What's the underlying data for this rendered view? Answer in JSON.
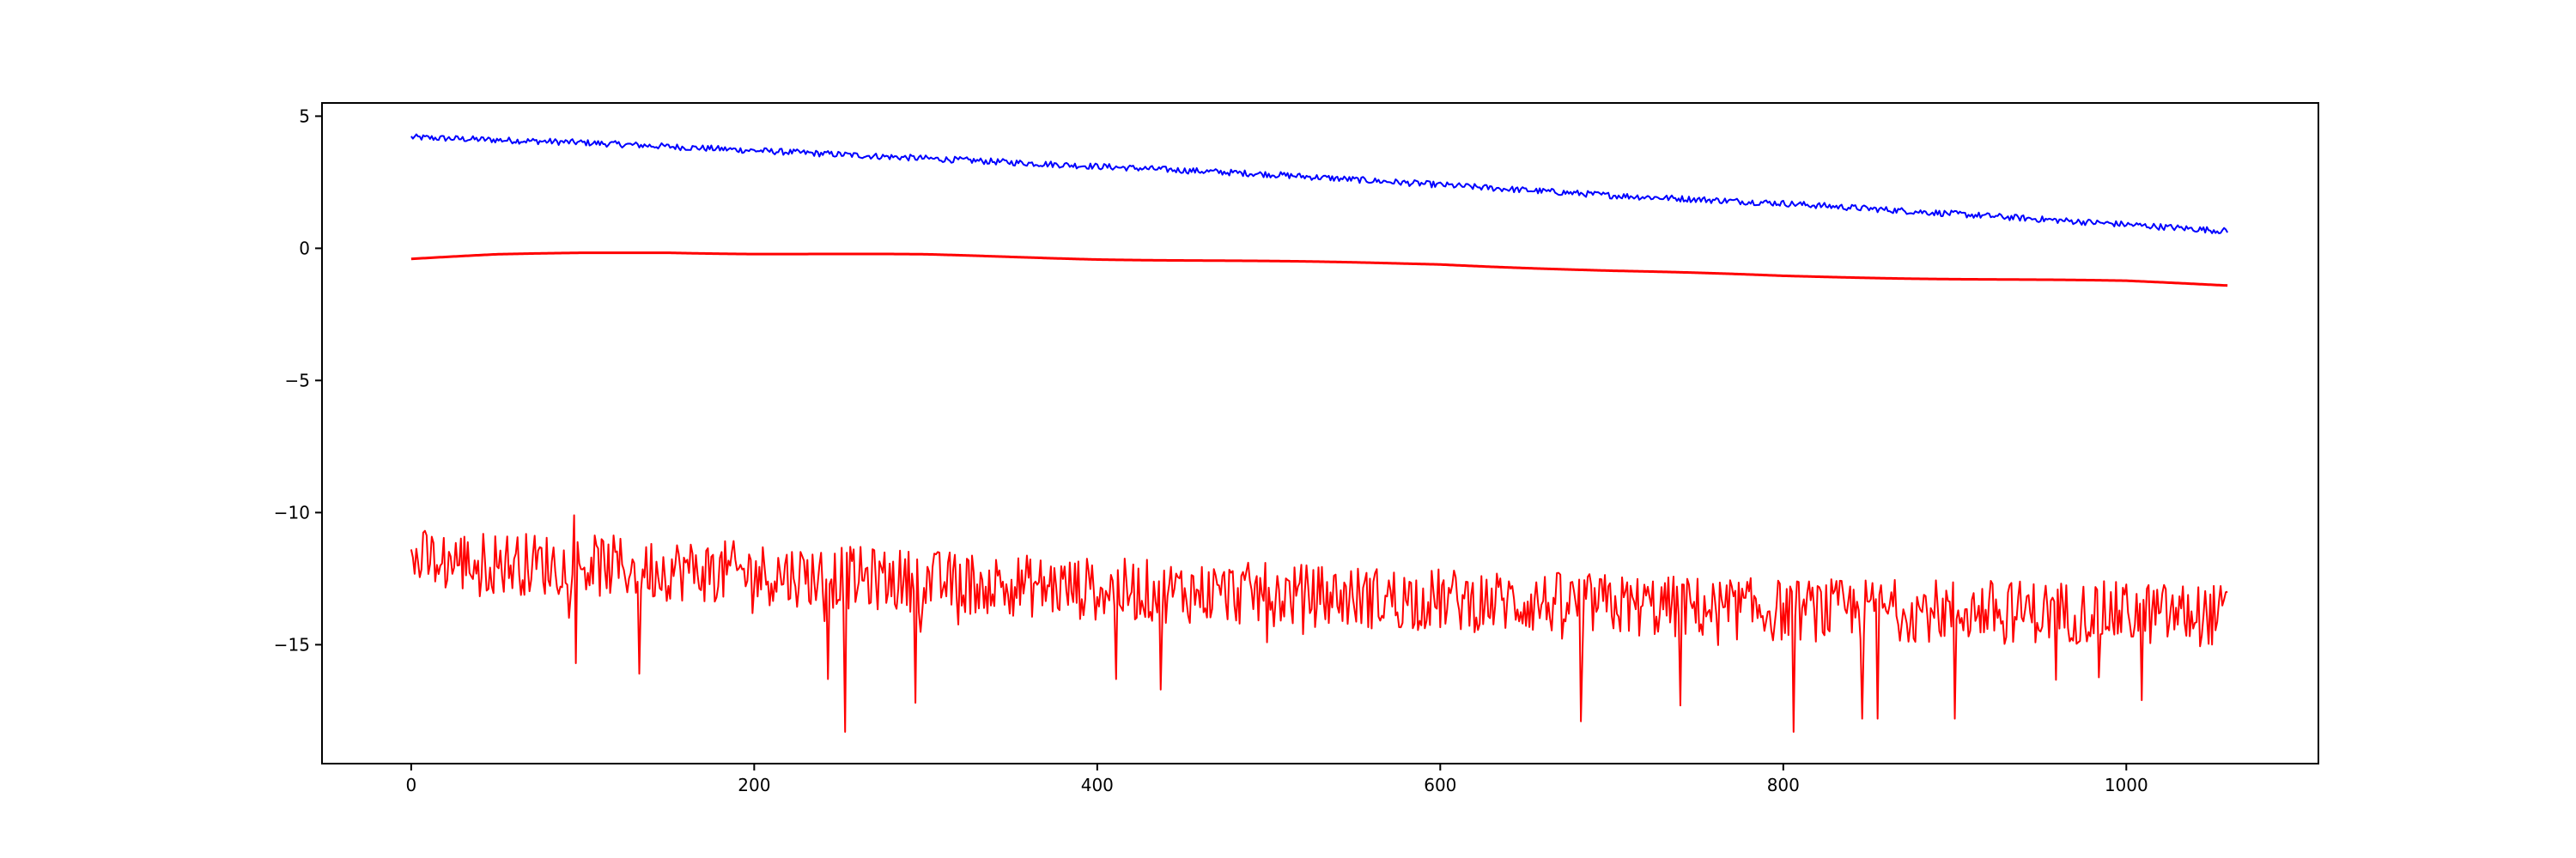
{
  "chart_data": {
    "type": "line",
    "title": "",
    "xlabel": "",
    "ylabel": "",
    "xlim": [
      -52,
      1112
    ],
    "ylim": [
      -19.5,
      5.5
    ],
    "grid": false,
    "x_ticks": [
      0,
      200,
      400,
      600,
      800,
      1000
    ],
    "y_ticks": [
      5,
      0,
      -5,
      -10,
      -15
    ],
    "y_tick_labels": [
      "5",
      "0",
      "−5",
      "−10",
      "−15"
    ],
    "x_tick_labels": [
      "0",
      "200",
      "400",
      "600",
      "800",
      "1000"
    ],
    "x_count": 1060,
    "series": [
      {
        "color": "#0000ff",
        "kind": "noisy_trend",
        "anchor_x": [
          0,
          100,
          200,
          300,
          400,
          500,
          600,
          700,
          800,
          900,
          1000,
          1059
        ],
        "anchor_y": [
          4.2,
          4.0,
          3.7,
          3.4,
          3.1,
          2.8,
          2.4,
          2.0,
          1.7,
          1.3,
          0.9,
          0.65
        ],
        "noise_amplitude": 0.12
      },
      {
        "color": "#ff0000",
        "kind": "smooth",
        "anchor_x": [
          0,
          50,
          100,
          150,
          200,
          300,
          400,
          450,
          500,
          550,
          600,
          700,
          800,
          900,
          1000,
          1059
        ],
        "anchor_y": [
          -0.4,
          -0.25,
          -0.18,
          -0.15,
          -0.2,
          -0.25,
          -0.4,
          -0.45,
          -0.5,
          -0.55,
          -0.6,
          -0.85,
          -1.05,
          -1.15,
          -1.25,
          -1.4
        ]
      },
      {
        "color": "#ff0000",
        "kind": "noisy_band",
        "anchor_x": [
          0,
          100,
          200,
          300,
          400,
          500,
          600,
          700,
          800,
          900,
          1000,
          1059
        ],
        "anchor_y": [
          -11.8,
          -12.0,
          -12.3,
          -12.6,
          -12.9,
          -13.1,
          -13.3,
          -13.5,
          -13.7,
          -13.7,
          -13.8,
          -13.9
        ],
        "noise_amplitude": 1.2,
        "spikes": [
          {
            "x": 95,
            "y": -10.1
          },
          {
            "x": 96,
            "y": -15.7
          },
          {
            "x": 133,
            "y": -16.1
          },
          {
            "x": 243,
            "y": -16.3
          },
          {
            "x": 253,
            "y": -18.3
          },
          {
            "x": 294,
            "y": -17.2
          },
          {
            "x": 411,
            "y": -16.3
          },
          {
            "x": 437,
            "y": -16.7
          },
          {
            "x": 682,
            "y": -17.9
          },
          {
            "x": 740,
            "y": -17.3
          },
          {
            "x": 806,
            "y": -18.3
          },
          {
            "x": 846,
            "y": -17.8
          },
          {
            "x": 855,
            "y": -17.8
          },
          {
            "x": 900,
            "y": -17.8
          },
          {
            "x": 1009,
            "y": -17.1
          }
        ]
      }
    ]
  }
}
